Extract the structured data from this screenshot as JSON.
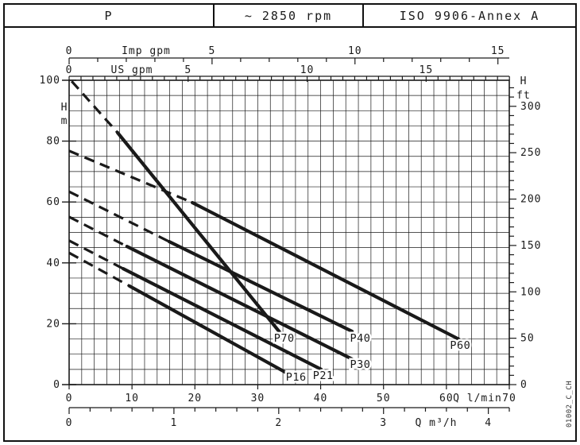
{
  "header": {
    "model": "P",
    "speed": "~ 2850 rpm",
    "standard": "ISO 9906-Annex A"
  },
  "watermark": "01002_C_CH",
  "colors": {
    "ink": "#1a1a1a",
    "grid": "#2e2e2e",
    "bg": "#ffffff"
  },
  "chart_data": {
    "type": "line",
    "title": "Pump head curves P16-P70 at ~2850 rpm",
    "grid": "on",
    "x_axes": [
      {
        "id": "imp_gpm",
        "label": "Imp gpm",
        "l_min_per_unit": 4.546,
        "ticks": [
          0,
          5,
          10,
          15
        ],
        "minor_step": 1
      },
      {
        "id": "us_gpm",
        "label": "US gpm",
        "l_min_per_unit": 3.785,
        "ticks": [
          0,
          5,
          10,
          15
        ],
        "minor_step": 0.5
      },
      {
        "id": "l_min",
        "label": "Q l/min",
        "l_min_per_unit": 1,
        "ticks": [
          0,
          10,
          20,
          30,
          40,
          50,
          60,
          70
        ],
        "range": [
          0,
          70
        ]
      },
      {
        "id": "m3_h",
        "label": "Q m³/h",
        "l_min_per_unit": 16.667,
        "ticks": [
          0,
          1,
          2,
          3,
          4
        ],
        "minor_step": 0.2,
        "max": 4.2
      }
    ],
    "y_axes": [
      {
        "id": "h_m",
        "label": "H",
        "unit": "m",
        "m_per_unit": 1,
        "ticks": [
          0,
          20,
          40,
          60,
          80,
          100
        ],
        "grid_step": 5,
        "range": [
          0,
          100
        ]
      },
      {
        "id": "h_ft",
        "label": "H",
        "unit": "ft",
        "m_per_unit": 0.3048,
        "ticks": [
          0,
          50,
          100,
          150,
          200,
          250,
          300
        ],
        "minor_step": 10,
        "max": 320
      }
    ],
    "grid_step_l_min": 2,
    "series": [
      {
        "name": "P16",
        "dashed": [
          [
            0,
            43.3
          ],
          [
            9.6,
            32.4
          ]
        ],
        "solid": [
          [
            9.6,
            32.4
          ],
          [
            34.7,
            3.7
          ]
        ],
        "label_at": [
          36.1,
          2.3
        ]
      },
      {
        "name": "P21",
        "dashed": [
          [
            0,
            47.3
          ],
          [
            8.6,
            38.1
          ]
        ],
        "solid": [
          [
            8.6,
            38.1
          ],
          [
            40.1,
            5.0
          ]
        ],
        "label_at": [
          40.4,
          2.9
        ]
      },
      {
        "name": "P30",
        "dashed": [
          [
            0,
            55.1
          ],
          [
            9.2,
            45.4
          ]
        ],
        "solid": [
          [
            9.2,
            45.4
          ],
          [
            45.0,
            8.4
          ]
        ],
        "label_at": [
          46.3,
          6.5
        ]
      },
      {
        "name": "P40",
        "dashed": [
          [
            0,
            63.4
          ],
          [
            15.9,
            47.0
          ]
        ],
        "solid": [
          [
            15.9,
            47.0
          ],
          [
            45.0,
            17.5
          ]
        ],
        "label_at": [
          46.3,
          15.1
        ]
      },
      {
        "name": "P60",
        "dashed": [
          [
            0,
            76.8
          ],
          [
            19.6,
            59.8
          ]
        ],
        "solid": [
          [
            19.6,
            59.8
          ],
          [
            62.0,
            14.9
          ]
        ],
        "label_at": [
          62.2,
          12.8
        ]
      },
      {
        "name": "P70",
        "dashed": [
          [
            0.4,
            99.7
          ],
          [
            7.7,
            82.8
          ]
        ],
        "solid": [
          [
            7.7,
            82.8
          ],
          [
            33.5,
            17.2
          ]
        ],
        "label_at": [
          34.2,
          15.1
        ]
      }
    ]
  }
}
